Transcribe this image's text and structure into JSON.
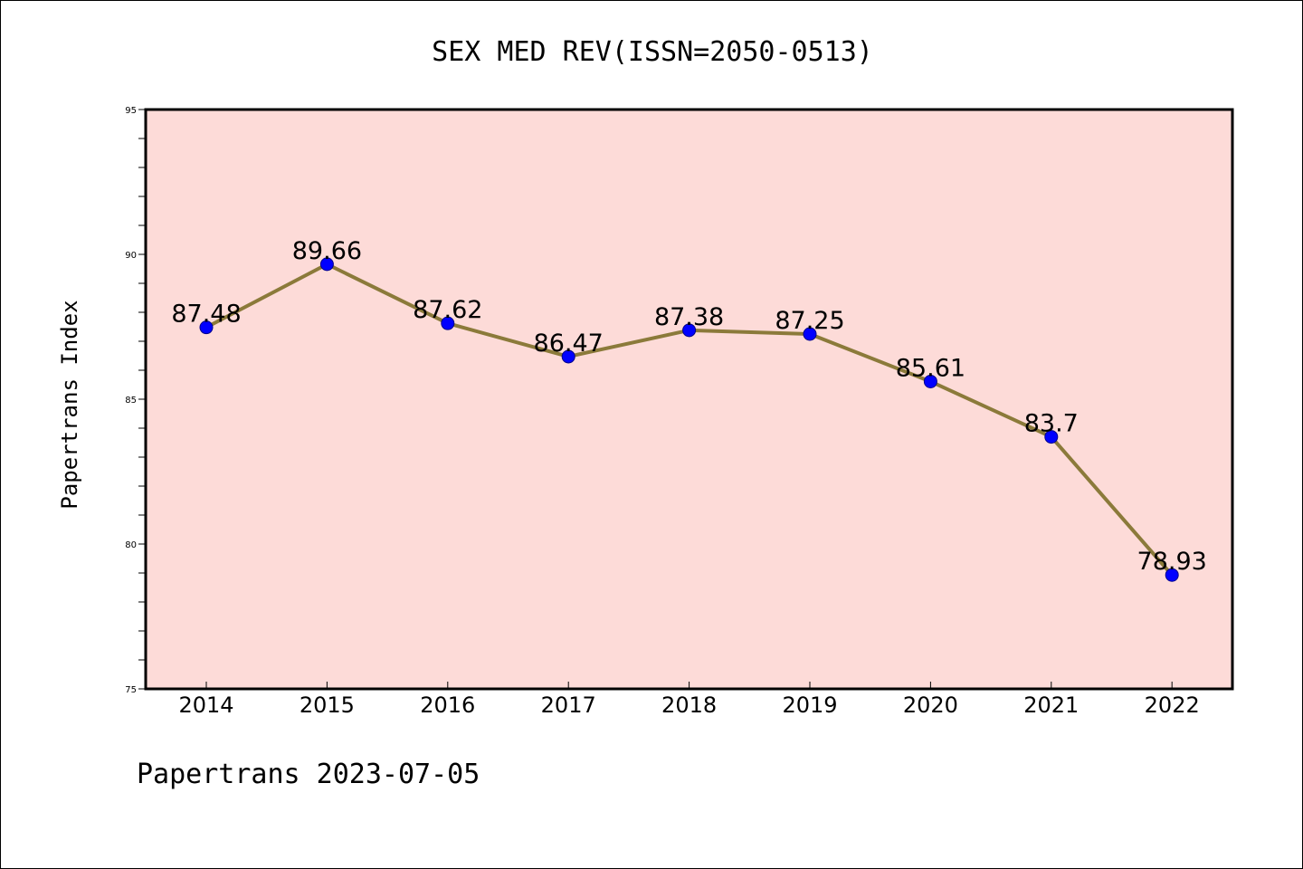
{
  "chart_data": {
    "type": "line",
    "title": "SEX MED REV(ISSN=2050-0513)",
    "xlabel": "",
    "ylabel": "Papertrans Index",
    "categories": [
      "2014",
      "2015",
      "2016",
      "2017",
      "2018",
      "2019",
      "2020",
      "2021",
      "2022"
    ],
    "series": [
      {
        "values": [
          87.48,
          89.66,
          87.62,
          86.47,
          87.38,
          87.25,
          85.61,
          83.7,
          78.93
        ],
        "labels": [
          "87.48",
          "89.66",
          "87.62",
          "86.47",
          "87.38",
          "87.25",
          "85.61",
          "83.7",
          "78.93"
        ],
        "line_color": "#8b7a3a",
        "marker_color": "#0000ff"
      }
    ],
    "ylim": [
      75,
      95
    ],
    "y_ticks": [
      "75",
      "80",
      "85",
      "90",
      "95"
    ],
    "grid": false,
    "legend": "none",
    "plot_background": "#fddbd8"
  },
  "footer": "Papertrans 2023-07-05"
}
